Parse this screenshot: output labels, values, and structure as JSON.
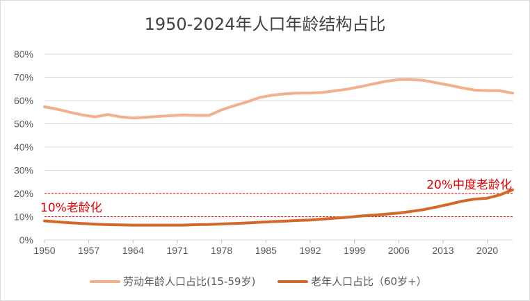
{
  "chart_data": {
    "type": "line",
    "title": "1950-2024年人口年龄结构占比",
    "xlabel": "",
    "ylabel": "",
    "xlim": [
      1950,
      2024
    ],
    "ylim": [
      0,
      80
    ],
    "yticks": [
      "0%",
      "10%",
      "20%",
      "30%",
      "40%",
      "50%",
      "60%",
      "70%",
      "80%"
    ],
    "xticks": [
      "1950",
      "1957",
      "1964",
      "1971",
      "1978",
      "1985",
      "1992",
      "1999",
      "2006",
      "2013",
      "2020"
    ],
    "grid": true,
    "legend_position": "bottom",
    "series": [
      {
        "name": "劳动年龄人口占比(15-59岁)",
        "color": "#f4b08c",
        "x": [
          1950,
          1952,
          1954,
          1956,
          1958,
          1960,
          1962,
          1964,
          1966,
          1968,
          1970,
          1972,
          1974,
          1976,
          1978,
          1980,
          1982,
          1984,
          1986,
          1988,
          1990,
          1992,
          1994,
          1996,
          1998,
          2000,
          2002,
          2004,
          2006,
          2008,
          2010,
          2012,
          2014,
          2016,
          2018,
          2020,
          2022,
          2024
        ],
        "values": [
          57.3,
          56.3,
          55.0,
          53.8,
          53.0,
          54.0,
          53.0,
          52.5,
          52.8,
          53.2,
          53.5,
          53.8,
          53.6,
          53.6,
          56.0,
          57.8,
          59.4,
          61.3,
          62.3,
          62.9,
          63.2,
          63.2,
          63.5,
          64.2,
          65.0,
          66.0,
          67.2,
          68.3,
          69.0,
          69.0,
          68.7,
          67.6,
          66.6,
          65.5,
          64.5,
          64.3,
          64.2,
          63.2
        ]
      },
      {
        "name": "老年人口占比（60岁+）",
        "color": "#d2692a",
        "x": [
          1950,
          1952,
          1954,
          1956,
          1958,
          1960,
          1962,
          1964,
          1966,
          1968,
          1970,
          1972,
          1974,
          1976,
          1978,
          1980,
          1982,
          1984,
          1986,
          1988,
          1990,
          1992,
          1994,
          1996,
          1998,
          2000,
          2002,
          2004,
          2006,
          2008,
          2010,
          2012,
          2014,
          2016,
          2018,
          2020,
          2022,
          2024
        ],
        "values": [
          8.2,
          7.8,
          7.4,
          7.1,
          6.8,
          6.6,
          6.5,
          6.4,
          6.4,
          6.4,
          6.4,
          6.4,
          6.6,
          6.7,
          6.9,
          7.1,
          7.3,
          7.6,
          7.9,
          8.1,
          8.4,
          8.6,
          9.0,
          9.4,
          9.8,
          10.3,
          10.7,
          11.1,
          11.6,
          12.3,
          13.1,
          14.2,
          15.4,
          16.7,
          17.6,
          18.0,
          19.4,
          21.6
        ]
      }
    ],
    "reference_lines": [
      {
        "value": 20,
        "label": "20%中度老龄化",
        "color": "#e00000",
        "style": "dashed"
      },
      {
        "value": 10,
        "label": "10%老龄化",
        "color": "#e00000",
        "style": "dashed"
      }
    ]
  }
}
